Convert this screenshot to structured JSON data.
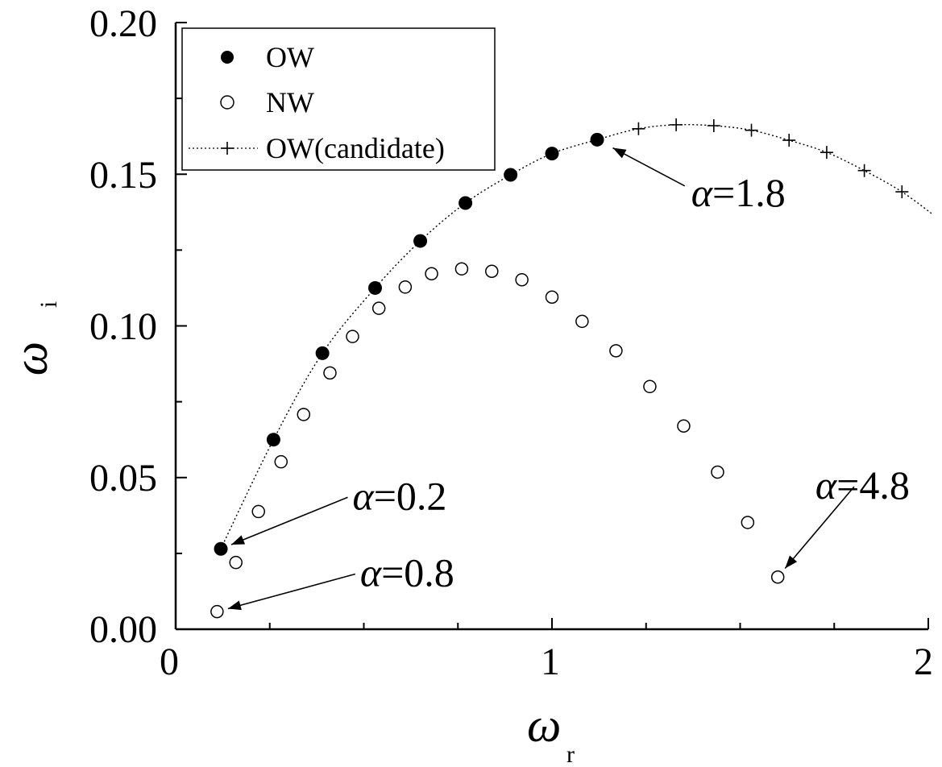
{
  "chart_data": {
    "type": "scatter",
    "xlabel": "ω",
    "xlabel_sub": "r",
    "ylabel": "ω",
    "ylabel_sub": "i",
    "xlim": [
      0,
      2
    ],
    "ylim": [
      0,
      0.2
    ],
    "x_ticks": [
      "0",
      "1",
      "2"
    ],
    "y_ticks": [
      "0.00",
      "0.05",
      "0.10",
      "0.15",
      "0.20"
    ],
    "grid": false,
    "legend_position": "top-left",
    "series": [
      {
        "name": "OW",
        "marker": "filled-circle",
        "x": [
          0.12,
          0.26,
          0.39,
          0.53,
          0.65,
          0.77,
          0.89,
          1.0,
          1.12
        ],
        "y": [
          0.0265,
          0.0625,
          0.091,
          0.1125,
          0.128,
          0.1405,
          0.1498,
          0.1568,
          0.1614
        ]
      },
      {
        "name": "NW",
        "marker": "open-circle",
        "x": [
          0.11,
          0.16,
          0.22,
          0.28,
          0.34,
          0.41,
          0.47,
          0.54,
          0.61,
          0.68,
          0.76,
          0.84,
          0.92,
          1.0,
          1.08,
          1.17,
          1.26,
          1.35,
          1.44,
          1.52,
          1.6
        ],
        "y": [
          0.0058,
          0.022,
          0.0388,
          0.0552,
          0.0708,
          0.0845,
          0.0965,
          0.1058,
          0.1128,
          0.1172,
          0.1188,
          0.118,
          0.1152,
          0.1095,
          0.1015,
          0.0918,
          0.08,
          0.067,
          0.0518,
          0.0352,
          0.0172
        ]
      },
      {
        "name": "OW(candidate)",
        "marker": "plus",
        "line": "dotted",
        "x": [
          1.23,
          1.33,
          1.43,
          1.53,
          1.63,
          1.73,
          1.83,
          1.93,
          2.02
        ],
        "y": [
          0.165,
          0.1663,
          0.166,
          0.1645,
          0.1612,
          0.1572,
          0.1512,
          0.1442,
          0.136
        ]
      }
    ],
    "annotations": [
      {
        "symbol": "α",
        "text": "=1.8",
        "point": [
          1.12,
          0.1614
        ],
        "label_at": [
          1.37,
          0.1395
        ]
      },
      {
        "symbol": "α",
        "text": "=0.2",
        "point": [
          0.12,
          0.0265
        ],
        "label_at": [
          0.47,
          0.0395
        ]
      },
      {
        "symbol": "α",
        "text": "=0.8",
        "point": [
          0.11,
          0.0058
        ],
        "label_at": [
          0.49,
          0.0142
        ]
      },
      {
        "symbol": "α",
        "text": "=4.8",
        "point": [
          1.6,
          0.0172
        ],
        "label_at": [
          1.7,
          0.043
        ]
      }
    ]
  }
}
